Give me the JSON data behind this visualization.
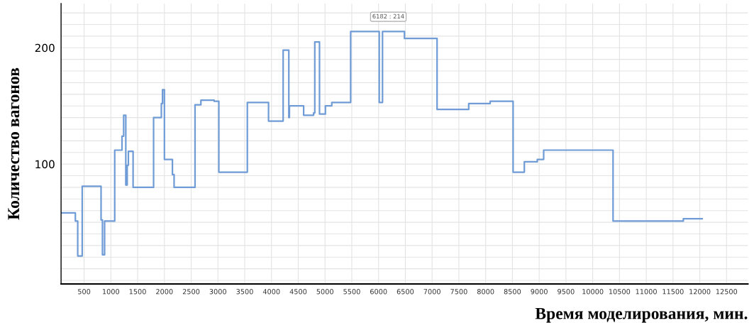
{
  "chart_data": {
    "type": "step",
    "xlabel": "Время моделирования, мин.",
    "ylabel": "Количество вагонов",
    "x": [
      73,
      337,
      381,
      465,
      817,
      843,
      883,
      1072,
      1208,
      1239,
      1279,
      1305,
      1327,
      1415,
      1798,
      1943,
      1965,
      2000,
      2150,
      2181,
      2572,
      2682,
      2929,
      3017,
      3549,
      3945,
      4218,
      4324,
      4335,
      4601,
      4787,
      4809,
      4897,
      5007,
      5126,
      5479,
      6013,
      6074,
      6484,
      7093,
      7684,
      8085,
      8513,
      8723,
      8965,
      9084,
      10380,
      11693,
      12045
    ],
    "series": [
      {
        "color": "#6f9bd6",
        "values": [
          58,
          51,
          21,
          81,
          52,
          22,
          51,
          112,
          124,
          142,
          82,
          99,
          111,
          80,
          140,
          152,
          164,
          104,
          91,
          80,
          151,
          155,
          154,
          93,
          153,
          137,
          198,
          140,
          150,
          142,
          144,
          205,
          143,
          150,
          153,
          214,
          153,
          214,
          208,
          147,
          152,
          154,
          93,
          102,
          104,
          112,
          51,
          53,
          53
        ]
      }
    ],
    "annotations": [
      {
        "text": "6182 : 214",
        "x": 6182,
        "y": 214
      }
    ],
    "xlim": [
      70,
      12900
    ],
    "xticks": [
      500,
      1000,
      1500,
      2000,
      2500,
      3000,
      3500,
      4000,
      4500,
      5000,
      5500,
      6000,
      6500,
      7000,
      7500,
      8000,
      8500,
      9000,
      9500,
      10000,
      10500,
      11000,
      11500,
      12000,
      12500
    ],
    "ylim": [
      -3,
      238
    ],
    "yticks": [
      {
        "value": 0,
        "label": null
      },
      {
        "value": 10,
        "label": null
      },
      {
        "value": 20,
        "label": null
      },
      {
        "value": 30,
        "label": null
      },
      {
        "value": 40,
        "label": null
      },
      {
        "value": 50,
        "label": null
      },
      {
        "value": 60,
        "label": null
      },
      {
        "value": 70,
        "label": null
      },
      {
        "value": 80,
        "label": null
      },
      {
        "value": 90,
        "label": null
      },
      100,
      {
        "value": 110,
        "label": null
      },
      {
        "value": 120,
        "label": null
      },
      {
        "value": 130,
        "label": null
      },
      {
        "value": 140,
        "label": null
      },
      {
        "value": 150,
        "label": null
      },
      {
        "value": 160,
        "label": null
      },
      {
        "value": 170,
        "label": null
      },
      {
        "value": 180,
        "label": null
      },
      {
        "value": 190,
        "label": null
      },
      200,
      {
        "value": 210,
        "label": null
      },
      {
        "value": 220,
        "label": null
      },
      {
        "value": 230,
        "label": null
      }
    ],
    "grid": true,
    "marker": "none",
    "line_style": "solid"
  }
}
